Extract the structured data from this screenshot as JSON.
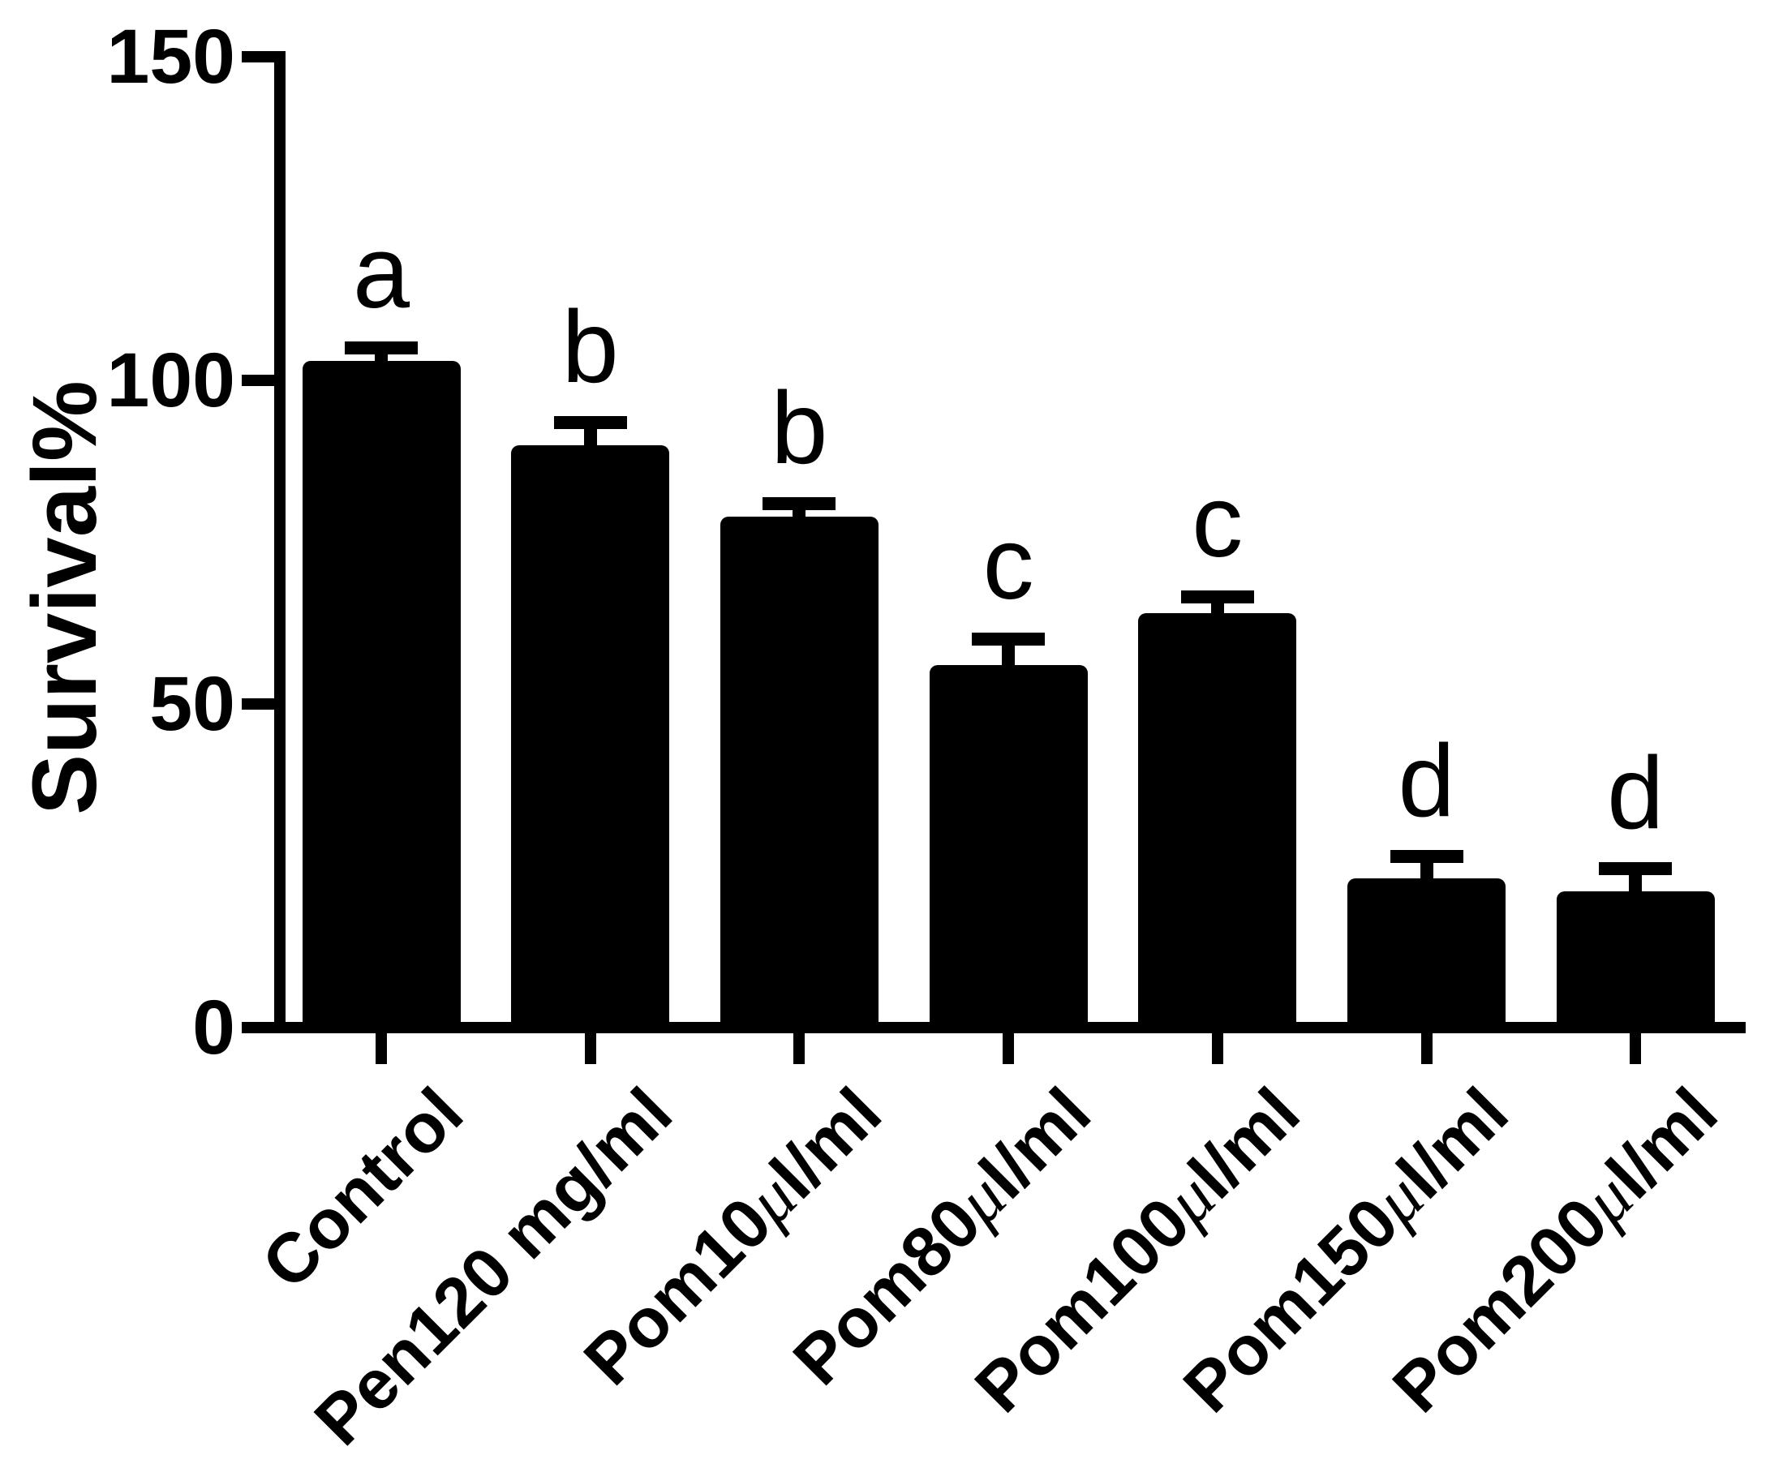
{
  "figure": {
    "background": "#ffffff"
  },
  "chart_data": {
    "type": "bar",
    "title": "",
    "ylabel": "Survival%",
    "xlabel": "",
    "categories": [
      "Control",
      "Pen120 mg/ml",
      "Pom10μl/ml",
      "Pom80μl/ml",
      "Pom100μl/ml",
      "Pom150μl/ml",
      "Pom200μl/ml"
    ],
    "values": [
      103,
      90,
      79,
      56,
      64,
      23,
      21
    ],
    "errors": [
      2,
      3.5,
      2,
      4,
      2.5,
      3.5,
      3.5
    ],
    "significance_letters": [
      "a",
      "b",
      "b",
      "c",
      "c",
      "d",
      "d"
    ],
    "ylim": [
      0,
      150
    ],
    "yticks": [
      0,
      50,
      100,
      150
    ],
    "bar_color": "#000000",
    "axis_color": "#000000",
    "grid": false,
    "legend": null,
    "error_bars": "upper with caps"
  }
}
